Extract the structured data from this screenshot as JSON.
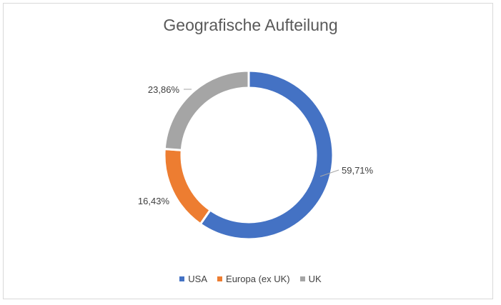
{
  "chart_data": {
    "type": "doughnut",
    "title": "Geografische Aufteilung",
    "categories": [
      "USA",
      "Europa (ex UK)",
      "UK"
    ],
    "values": [
      59.71,
      16.43,
      23.86
    ],
    "value_labels": [
      "59,71%",
      "16,43%",
      "23,86%"
    ],
    "colors": [
      "#4472c4",
      "#ed7d31",
      "#a5a5a5"
    ],
    "legend_position": "bottom",
    "start_angle_deg": 0,
    "direction": "clockwise"
  }
}
